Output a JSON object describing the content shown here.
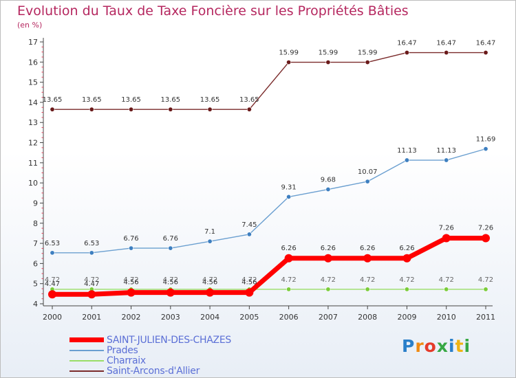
{
  "chart_data": {
    "type": "line",
    "title": "Evolution du Taux de Taxe Foncière sur les Propriétés Bâties",
    "subtitle": "(en %)",
    "xlabel": "",
    "ylabel": "(en %)",
    "ylim": [
      4,
      17
    ],
    "yticks": [
      4,
      5,
      6,
      7,
      8,
      9,
      10,
      11,
      12,
      13,
      14,
      15,
      16,
      17
    ],
    "categories": [
      "2000",
      "2001",
      "2002",
      "2003",
      "2004",
      "2005",
      "2006",
      "2007",
      "2008",
      "2009",
      "2010",
      "2011"
    ],
    "grid": false,
    "legend_position": "bottom-left",
    "series": [
      {
        "name": "SAINT-JULIEN-DES-CHAZES",
        "color": "#ff0000",
        "values": [
          4.47,
          4.47,
          4.56,
          4.56,
          4.56,
          4.56,
          6.26,
          6.26,
          6.26,
          6.26,
          7.26,
          7.26
        ],
        "labels": [
          "4.47",
          "4.47",
          "4.56",
          "4.56",
          "4.56",
          "4.56",
          "6.26",
          "6.26",
          "6.26",
          "6.26",
          "7.26",
          "7.26"
        ]
      },
      {
        "name": "Prades",
        "color": "#6a9fd0",
        "values": [
          6.53,
          6.53,
          6.76,
          6.76,
          7.1,
          7.45,
          9.31,
          9.68,
          10.07,
          11.13,
          11.13,
          11.69
        ],
        "labels": [
          "6.53",
          "6.53",
          "6.76",
          "6.76",
          "7.1",
          "7.45",
          "9.31",
          "9.68",
          "10.07",
          "11.13",
          "11.13",
          "11.69"
        ]
      },
      {
        "name": "Charraix",
        "color": "#99dd66",
        "values": [
          4.72,
          4.72,
          4.72,
          4.72,
          4.72,
          4.72,
          4.72,
          4.72,
          4.72,
          4.72,
          4.72,
          4.72
        ],
        "labels": [
          "4.72",
          "4.72",
          "4.72",
          "4.72",
          "4.72",
          "4.72",
          "4.72",
          "4.72",
          "4.72",
          "4.72",
          "4.72",
          "4.72"
        ]
      },
      {
        "name": "Saint-Arcons-d'Allier",
        "color": "#7a2a2a",
        "values": [
          13.65,
          13.65,
          13.65,
          13.65,
          13.65,
          13.65,
          15.99,
          15.99,
          15.99,
          16.47,
          16.47,
          16.47
        ],
        "labels": [
          "13.65",
          "13.65",
          "13.65",
          "13.65",
          "13.65",
          "13.65",
          "15.99",
          "15.99",
          "15.99",
          "16.47",
          "16.47",
          "16.47"
        ]
      }
    ]
  },
  "legend": {
    "items": [
      "SAINT-JULIEN-DES-CHAZES",
      "Prades",
      "Charraix",
      "Saint-Arcons-d'Allier"
    ]
  },
  "logo": {
    "text": "Proxiti",
    "letters": [
      "P",
      "r",
      "o",
      "x",
      "i",
      "t",
      "i"
    ]
  }
}
